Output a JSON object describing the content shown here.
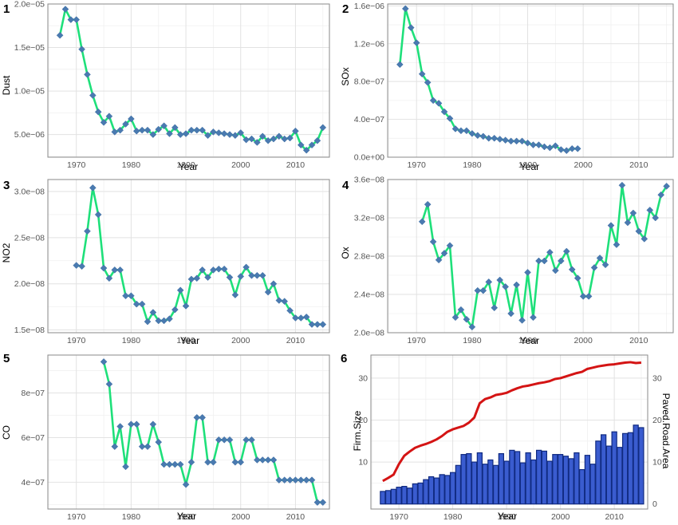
{
  "colors": {
    "line": "#1ee07a",
    "marker": "#4a7ab0",
    "bar_fill": "#3a5ccf",
    "bar_stroke": "#102a80",
    "road_line": "#d41414",
    "grid": "#e2e2e2",
    "axis_text": "#555555"
  },
  "chart_data": [
    {
      "id": "1",
      "panel_label": "1",
      "type": "line",
      "marker": "diamond",
      "xlabel": "Year",
      "ylabel": "Dust",
      "xlim": [
        1964.8,
        2016.2
      ],
      "ylim": [
        2.4e-06,
        2e-05
      ],
      "xticks": [
        1970,
        1980,
        1990,
        2000,
        2010
      ],
      "xtick_labels": [
        "1970",
        "1980",
        "1990",
        "2000",
        "2010"
      ],
      "yticks": [
        5e-06,
        1e-05,
        1.5e-05,
        2e-05
      ],
      "ytick_labels": [
        "5.0e−06",
        "1.0e−05",
        "1.5e−05",
        "2.0e−05"
      ],
      "x": [
        1967,
        1968,
        1969,
        1970,
        1971,
        1972,
        1973,
        1974,
        1975,
        1976,
        1977,
        1978,
        1979,
        1980,
        1981,
        1982,
        1983,
        1984,
        1985,
        1986,
        1987,
        1988,
        1989,
        1990,
        1991,
        1992,
        1993,
        1994,
        1995,
        1996,
        1997,
        1998,
        1999,
        2000,
        2001,
        2002,
        2003,
        2004,
        2005,
        2006,
        2007,
        2008,
        2009,
        2010,
        2011,
        2012,
        2013,
        2014,
        2015
      ],
      "y": [
        1.64e-05,
        1.94e-05,
        1.82e-05,
        1.82e-05,
        1.48e-05,
        1.19e-05,
        9.5e-06,
        7.6e-06,
        6.4e-06,
        7.1e-06,
        5.3e-06,
        5.5e-06,
        6.2e-06,
        6.8e-06,
        5.4e-06,
        5.5e-06,
        5.5e-06,
        5e-06,
        5.6e-06,
        6e-06,
        5.1e-06,
        5.8e-06,
        5e-06,
        5.1e-06,
        5.5e-06,
        5.5e-06,
        5.5e-06,
        4.9e-06,
        5.3e-06,
        5.2e-06,
        5.1e-06,
        5e-06,
        4.9e-06,
        5.2e-06,
        4.4e-06,
        4.5e-06,
        4.1e-06,
        4.8e-06,
        4.3e-06,
        4.5e-06,
        4.8e-06,
        4.5e-06,
        4.6e-06,
        5.4e-06,
        3.8e-06,
        3.2e-06,
        3.8e-06,
        4.3e-06,
        5.8e-06
      ]
    },
    {
      "id": "2",
      "panel_label": "2",
      "type": "line",
      "marker": "diamond",
      "xlabel": "Year",
      "ylabel": "SOx",
      "xlim": [
        1964.8,
        2016.2
      ],
      "ylim": [
        0,
        1.62e-06
      ],
      "xticks": [
        1970,
        1980,
        1990,
        2000,
        2010
      ],
      "xtick_labels": [
        "1970",
        "1980",
        "1990",
        "2000",
        "2010"
      ],
      "yticks": [
        0,
        4e-07,
        8e-07,
        1.2e-06,
        1.6e-06
      ],
      "ytick_labels": [
        "0.0e+00",
        "4.0e−07",
        "8.0e−07",
        "1.2e−06",
        "1.6e−06"
      ],
      "x": [
        1967,
        1968,
        1969,
        1970,
        1971,
        1972,
        1973,
        1974,
        1975,
        1976,
        1977,
        1978,
        1979,
        1980,
        1981,
        1982,
        1983,
        1984,
        1985,
        1986,
        1987,
        1988,
        1989,
        1990,
        1991,
        1992,
        1993,
        1994,
        1995,
        1996,
        1997,
        1998,
        1999
      ],
      "y": [
        9.8e-07,
        1.57e-06,
        1.37e-06,
        1.21e-06,
        8.8e-07,
        7.9e-07,
        6e-07,
        5.7e-07,
        4.8e-07,
        4.1e-07,
        3e-07,
        2.8e-07,
        2.8e-07,
        2.5e-07,
        2.3e-07,
        2.2e-07,
        2e-07,
        2e-07,
        1.9e-07,
        1.8e-07,
        1.7e-07,
        1.7e-07,
        1.7e-07,
        1.5e-07,
        1.3e-07,
        1.3e-07,
        1.1e-07,
        1e-07,
        1.2e-07,
        8e-08,
        7e-08,
        9e-08,
        9e-08
      ]
    },
    {
      "id": "3",
      "panel_label": "3",
      "type": "line",
      "marker": "diamond",
      "xlabel": "Year",
      "ylabel": "NO2",
      "xlim": [
        1964.8,
        2016.2
      ],
      "ylim": [
        1.47e-08,
        3.13e-08
      ],
      "xticks": [
        1970,
        1980,
        1990,
        2000,
        2010
      ],
      "xtick_labels": [
        "1970",
        "1980",
        "1990",
        "2000",
        "2010"
      ],
      "yticks": [
        1.5e-08,
        2e-08,
        2.5e-08,
        3e-08
      ],
      "ytick_labels": [
        "1.5e−08",
        "2.0e−08",
        "2.5e−08",
        "3.0e−08"
      ],
      "x": [
        1970,
        1971,
        1972,
        1973,
        1974,
        1975,
        1976,
        1977,
        1978,
        1979,
        1980,
        1981,
        1982,
        1983,
        1984,
        1985,
        1986,
        1987,
        1988,
        1989,
        1990,
        1991,
        1992,
        1993,
        1994,
        1995,
        1996,
        1997,
        1998,
        1999,
        2000,
        2001,
        2002,
        2003,
        2004,
        2005,
        2006,
        2007,
        2008,
        2009,
        2010,
        2011,
        2012,
        2013,
        2014,
        2015
      ],
      "y": [
        2.2e-08,
        2.19e-08,
        2.57e-08,
        3.04e-08,
        2.75e-08,
        2.17e-08,
        2.06e-08,
        2.15e-08,
        2.15e-08,
        1.87e-08,
        1.87e-08,
        1.78e-08,
        1.78e-08,
        1.59e-08,
        1.69e-08,
        1.6e-08,
        1.6e-08,
        1.62e-08,
        1.72e-08,
        1.93e-08,
        1.76e-08,
        2.05e-08,
        2.06e-08,
        2.15e-08,
        2.07e-08,
        2.15e-08,
        2.16e-08,
        2.16e-08,
        2.07e-08,
        1.88e-08,
        2.08e-08,
        2.18e-08,
        2.09e-08,
        2.09e-08,
        2.09e-08,
        1.91e-08,
        2e-08,
        1.82e-08,
        1.81e-08,
        1.71e-08,
        1.63e-08,
        1.63e-08,
        1.64e-08,
        1.56e-08,
        1.56e-08,
        1.56e-08
      ]
    },
    {
      "id": "4",
      "panel_label": "4",
      "type": "line",
      "marker": "diamond",
      "xlabel": "Year",
      "ylabel": "Ox",
      "xlim": [
        1964.8,
        2016.2
      ],
      "ylim": [
        2e-08,
        3.6e-08
      ],
      "xticks": [
        1970,
        1980,
        1990,
        2000,
        2010
      ],
      "xtick_labels": [
        "1970",
        "1980",
        "1990",
        "2000",
        "2010"
      ],
      "yticks": [
        2e-08,
        2.4e-08,
        2.8e-08,
        3.2e-08,
        3.6e-08
      ],
      "ytick_labels": [
        "2.0e−08",
        "2.4e−08",
        "2.8e−08",
        "3.2e−08",
        "3.6e−08"
      ],
      "x": [
        1971,
        1972,
        1973,
        1974,
        1975,
        1976,
        1977,
        1978,
        1979,
        1980,
        1981,
        1982,
        1983,
        1984,
        1985,
        1986,
        1987,
        1988,
        1989,
        1990,
        1991,
        1992,
        1993,
        1994,
        1995,
        1996,
        1997,
        1998,
        1999,
        2000,
        2001,
        2002,
        2003,
        2004,
        2005,
        2006,
        2007,
        2008,
        2009,
        2010,
        2011,
        2012,
        2013,
        2014,
        2015
      ],
      "y": [
        3.16e-08,
        3.34e-08,
        2.95e-08,
        2.76e-08,
        2.83e-08,
        2.91e-08,
        2.16e-08,
        2.24e-08,
        2.14e-08,
        2.06e-08,
        2.44e-08,
        2.44e-08,
        2.53e-08,
        2.26e-08,
        2.55e-08,
        2.48e-08,
        2.2e-08,
        2.5e-08,
        2.13e-08,
        2.63e-08,
        2.16e-08,
        2.75e-08,
        2.75e-08,
        2.84e-08,
        2.65e-08,
        2.75e-08,
        2.85e-08,
        2.66e-08,
        2.57e-08,
        2.38e-08,
        2.38e-08,
        2.68e-08,
        2.78e-08,
        2.71e-08,
        3.12e-08,
        2.92e-08,
        3.54e-08,
        3.15e-08,
        3.25e-08,
        3.06e-08,
        2.98e-08,
        3.28e-08,
        3.2e-08,
        3.44e-08,
        3.53e-08
      ]
    },
    {
      "id": "5",
      "panel_label": "5",
      "type": "line",
      "marker": "diamond",
      "xlabel": "Year",
      "ylabel": "CO",
      "xlim": [
        1964.8,
        2016.2
      ],
      "ylim": [
        2.8e-07,
        9.7e-07
      ],
      "xticks": [
        1970,
        1980,
        1990,
        2000,
        2010
      ],
      "xtick_labels": [
        "1970",
        "1980",
        "1990",
        "2000",
        "2010"
      ],
      "yticks": [
        4e-07,
        6e-07,
        8e-07
      ],
      "ytick_labels": [
        "4e−07",
        "6e−07",
        "8e−07"
      ],
      "x": [
        1975,
        1976,
        1977,
        1978,
        1979,
        1980,
        1981,
        1982,
        1983,
        1984,
        1985,
        1986,
        1987,
        1988,
        1989,
        1990,
        1991,
        1992,
        1993,
        1994,
        1995,
        1996,
        1997,
        1998,
        1999,
        2000,
        2001,
        2002,
        2003,
        2004,
        2005,
        2006,
        2007,
        2008,
        2009,
        2010,
        2011,
        2012,
        2013,
        2014,
        2015
      ],
      "y": [
        9.4e-07,
        8.4e-07,
        5.6e-07,
        6.5e-07,
        4.7e-07,
        6.6e-07,
        6.6e-07,
        5.6e-07,
        5.6e-07,
        6.6e-07,
        5.8e-07,
        4.8e-07,
        4.8e-07,
        4.8e-07,
        4.8e-07,
        3.9e-07,
        4.9e-07,
        6.9e-07,
        6.9e-07,
        4.9e-07,
        4.9e-07,
        5.9e-07,
        5.9e-07,
        5.9e-07,
        4.9e-07,
        4.9e-07,
        5.9e-07,
        5.9e-07,
        5e-07,
        5e-07,
        5e-07,
        5e-07,
        4.1e-07,
        4.1e-07,
        4.1e-07,
        4.1e-07,
        4.1e-07,
        4.1e-07,
        4.1e-07,
        3.1e-07,
        3.1e-07
      ]
    },
    {
      "id": "6",
      "panel_label": "6",
      "type": "bar",
      "xlabel": "Year",
      "ylabel": "Firm.Size",
      "y2label": "Paved.Road.Area",
      "xlim": [
        1964.8,
        2016.2
      ],
      "ylim": [
        -1.2,
        35.5
      ],
      "y2lim": [
        -1.2,
        35.5
      ],
      "xticks": [
        1970,
        1980,
        1990,
        2000,
        2010
      ],
      "xtick_labels": [
        "1970",
        "1980",
        "1990",
        "2000",
        "2010"
      ],
      "yticks": [
        10,
        20,
        30
      ],
      "ytick_labels": [
        "10",
        "20",
        "30"
      ],
      "y2ticks": [
        0,
        10,
        20,
        30
      ],
      "y2tick_labels": [
        "0",
        "10",
        "20",
        "30"
      ],
      "x": [
        1967,
        1968,
        1969,
        1970,
        1971,
        1972,
        1973,
        1974,
        1975,
        1976,
        1977,
        1978,
        1979,
        1980,
        1981,
        1982,
        1983,
        1984,
        1985,
        1986,
        1987,
        1988,
        1989,
        1990,
        1991,
        1992,
        1993,
        1994,
        1995,
        1996,
        1997,
        1998,
        1999,
        2000,
        2001,
        2002,
        2003,
        2004,
        2005,
        2006,
        2007,
        2008,
        2009,
        2010,
        2011,
        2012,
        2013,
        2014,
        2015
      ],
      "series": [
        {
          "name": "Firm.Size",
          "axis": "left",
          "kind": "bar",
          "values": [
            3,
            3.2,
            3.5,
            4,
            4.2,
            3.8,
            4.8,
            5,
            5.8,
            6.5,
            6.2,
            7,
            6.8,
            7.5,
            9.2,
            11.8,
            12,
            10,
            12.2,
            9.5,
            10.5,
            9.2,
            12,
            10.2,
            12.8,
            12.5,
            9.8,
            12.2,
            10.5,
            12.8,
            12.6,
            10.2,
            11.8,
            11.8,
            11.4,
            10.8,
            12.2,
            8.2,
            11.6,
            9.5,
            15,
            16.5,
            13.8,
            17.2,
            13.5,
            16.8,
            17,
            18.8,
            18.2
          ]
        },
        {
          "name": "Paved.Road.Area",
          "axis": "right",
          "kind": "line",
          "values": [
            5.5,
            6.2,
            7,
            9.5,
            11.5,
            12.5,
            13.4,
            13.9,
            14.3,
            14.8,
            15.4,
            16.2,
            17.2,
            17.8,
            18.2,
            18.6,
            19.4,
            20.6,
            24,
            25,
            25.4,
            26,
            26.2,
            26.5,
            27.1,
            27.6,
            28,
            28.2,
            28.5,
            28.8,
            29,
            29.3,
            29.8,
            30,
            30.4,
            30.8,
            31.2,
            31.5,
            32.2,
            32.5,
            32.8,
            33,
            33.2,
            33.3,
            33.5,
            33.7,
            33.8,
            33.6,
            33.7
          ]
        }
      ]
    }
  ]
}
